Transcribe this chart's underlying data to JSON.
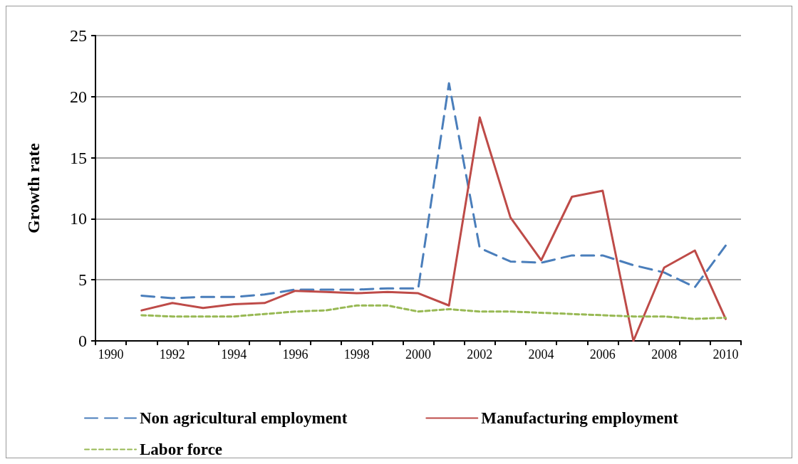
{
  "chart_data": {
    "type": "line",
    "ylabel": "Growth rate",
    "categories": [
      "1990",
      null,
      "1992",
      null,
      "1994",
      null,
      "1996",
      null,
      "1998",
      null,
      "2000",
      null,
      "2002",
      null,
      "2004",
      null,
      "2006",
      null,
      "2008",
      null,
      "2010"
    ],
    "series": [
      {
        "name": "Non agricultural employment",
        "color": "#4a7ebb",
        "line_style": "dashed",
        "values": [
          null,
          3.7,
          3.5,
          3.6,
          3.6,
          3.8,
          4.2,
          4.2,
          4.2,
          4.3,
          4.3,
          21.1,
          7.6,
          6.5,
          6.4,
          7.0,
          7.0,
          6.2,
          5.6,
          4.4,
          7.8
        ]
      },
      {
        "name": "Manufacturing employment",
        "color": "#be4b48",
        "line_style": "solid",
        "values": [
          null,
          2.5,
          3.1,
          2.7,
          3.0,
          3.1,
          4.1,
          4.0,
          3.9,
          4.0,
          3.9,
          2.9,
          18.3,
          10.1,
          6.6,
          11.8,
          12.3,
          0.0,
          6.0,
          7.4,
          1.8
        ]
      },
      {
        "name": "Labor force",
        "color": "#98b954",
        "line_style": "dotted",
        "values": [
          null,
          2.1,
          2.0,
          2.0,
          2.0,
          2.2,
          2.4,
          2.5,
          2.9,
          2.9,
          2.4,
          2.6,
          2.4,
          2.4,
          2.3,
          2.2,
          2.1,
          2.0,
          2.0,
          1.8,
          1.9
        ]
      }
    ],
    "ylim": [
      0,
      25
    ],
    "yticks": [
      0,
      5,
      10,
      15,
      20,
      25
    ],
    "grid": "y",
    "legend": "bottom",
    "marker": "none"
  }
}
